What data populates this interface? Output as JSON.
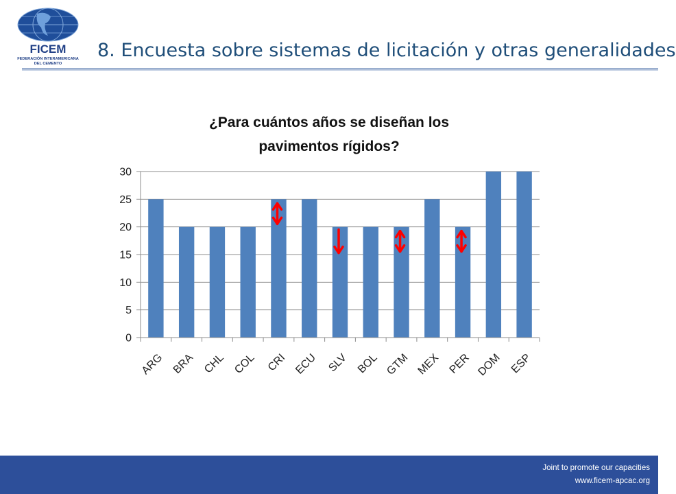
{
  "header": {
    "logo": {
      "wordmark": "FICEM",
      "org_line1": "FEDERACIÓN INTERAMERICANA",
      "org_line2": "DEL CEMENTO"
    },
    "title": "8. Encuesta sobre sistemas de licitación y otras generalidades"
  },
  "chart_data": {
    "type": "bar",
    "title_lines": [
      "¿Para cuántos años se diseñan los",
      "pavimentos rígidos?"
    ],
    "categories": [
      "ARG",
      "BRA",
      "CHL",
      "COL",
      "CRI",
      "ECU",
      "SLV",
      "BOL",
      "GTM",
      "MEX",
      "PER",
      "DOM",
      "ESP"
    ],
    "values": [
      25,
      20,
      20,
      20,
      25,
      25,
      20,
      20,
      20,
      25,
      20,
      30,
      30
    ],
    "ylim": [
      0,
      30
    ],
    "yticks": [
      0,
      5,
      10,
      15,
      20,
      25,
      30
    ],
    "grid": true,
    "legend": "none",
    "bar_color": "#4f81bd",
    "annotations": [
      {
        "category": "CRI",
        "kind": "double-arrow",
        "color": "#ff0000"
      },
      {
        "category": "SLV",
        "kind": "down-arrow",
        "color": "#ff0000"
      },
      {
        "category": "GTM",
        "kind": "double-arrow",
        "color": "#ff0000"
      },
      {
        "category": "PER",
        "kind": "double-arrow",
        "color": "#ff0000"
      }
    ]
  },
  "footer": {
    "line1": "Joint  to promote our capacities",
    "line2": "www.ficem-apcac.org",
    "color": "#2d4f9a"
  }
}
